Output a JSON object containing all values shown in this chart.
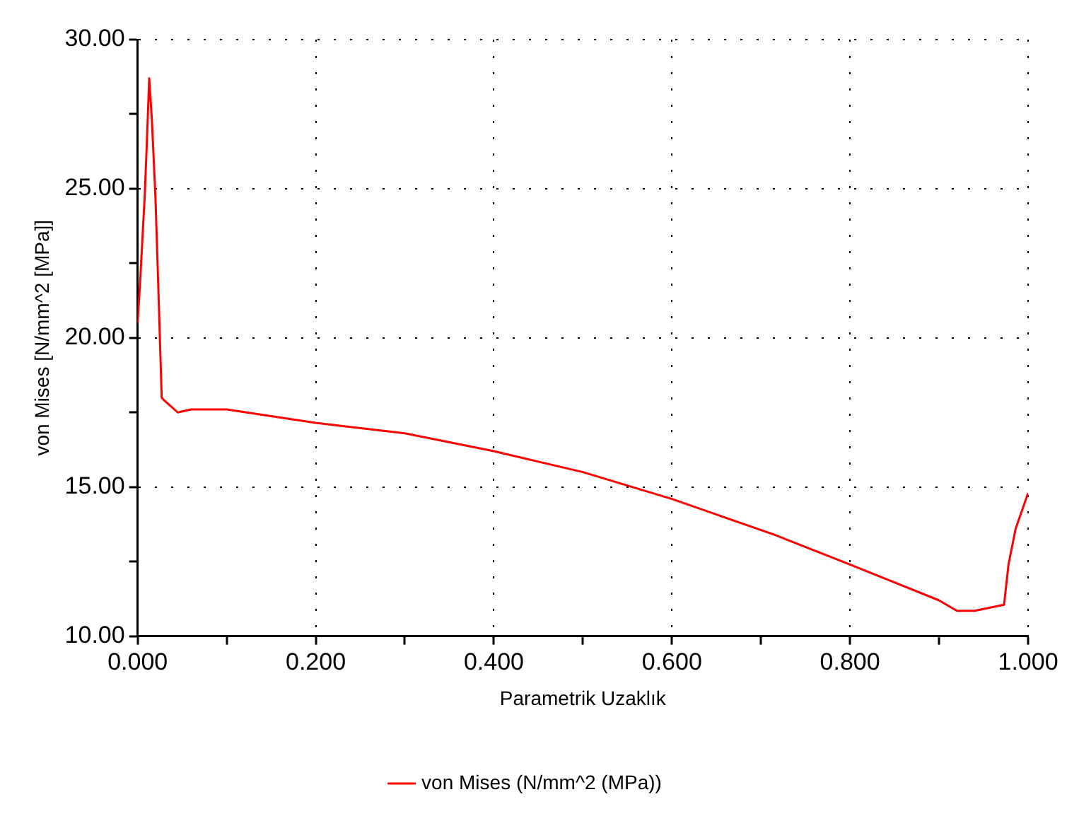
{
  "chart_data": {
    "type": "line",
    "xlabel": "Parametrik Uzaklık",
    "ylabel": "von Mises [N/mm^2 [MPa]]",
    "x": [
      0,
      0.003,
      0.008,
      0.01,
      0.013,
      0.016,
      0.02,
      0.023,
      0.027,
      0.03,
      0.045,
      0.06,
      0.1,
      0.2,
      0.3,
      0.4,
      0.5,
      0.6,
      0.715,
      0.8,
      0.9,
      0.92,
      0.94,
      0.973,
      0.978,
      0.986,
      1.0
    ],
    "series": [
      {
        "name": "von Mises (N/mm^2 (MPa))",
        "color": "#ff0000",
        "values": [
          20.5,
          22,
          24.8,
          26.3,
          28.7,
          27.3,
          24.7,
          21.9,
          18.0,
          17.9,
          17.5,
          17.6,
          17.6,
          17.15,
          16.8,
          16.2,
          15.5,
          14.6,
          13.4,
          12.4,
          11.2,
          10.85,
          10.85,
          11.05,
          12.4,
          13.6,
          14.8
        ]
      }
    ],
    "xlim": [
      0,
      1
    ],
    "ylim": [
      10,
      30
    ],
    "xticks": [
      {
        "value": 0,
        "label": "0.000"
      },
      {
        "value": 0.1,
        "label": null
      },
      {
        "value": 0.2,
        "label": "0.200"
      },
      {
        "value": 0.3,
        "label": null
      },
      {
        "value": 0.4,
        "label": "0.400"
      },
      {
        "value": 0.5,
        "label": null
      },
      {
        "value": 0.6,
        "label": "0.600"
      },
      {
        "value": 0.7,
        "label": null
      },
      {
        "value": 0.8,
        "label": "0.800"
      },
      {
        "value": 0.9,
        "label": null
      },
      {
        "value": 1,
        "label": "1.000"
      }
    ],
    "yticks": [
      {
        "value": 10,
        "label": "10.00"
      },
      {
        "value": 12.5,
        "label": null
      },
      {
        "value": 15,
        "label": "15.00"
      },
      {
        "value": 17.5,
        "label": null
      },
      {
        "value": 20,
        "label": "20.00"
      },
      {
        "value": 22.5,
        "label": null
      },
      {
        "value": 25,
        "label": "25.00"
      },
      {
        "value": 27.5,
        "label": null
      },
      {
        "value": 30,
        "label": "30.00"
      }
    ],
    "grid": true,
    "legend": "bottom",
    "marker": "none",
    "line_style": "solid"
  }
}
